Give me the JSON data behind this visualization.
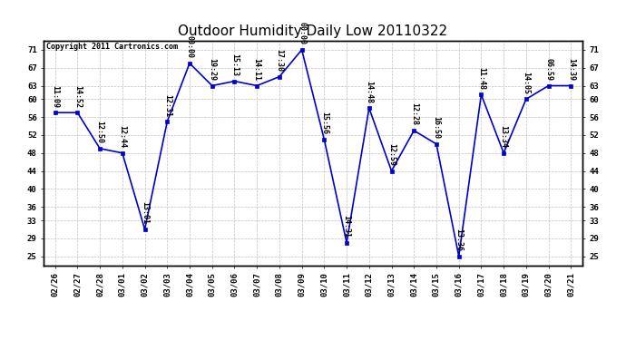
{
  "title": "Outdoor Humidity Daily Low 20110322",
  "copyright": "Copyright 2011 Cartronics.com",
  "dates": [
    "02/26",
    "02/27",
    "02/28",
    "03/01",
    "03/02",
    "03/03",
    "03/04",
    "03/05",
    "03/06",
    "03/07",
    "03/08",
    "03/09",
    "03/10",
    "03/11",
    "03/12",
    "03/13",
    "03/14",
    "03/15",
    "03/16",
    "03/17",
    "03/18",
    "03/19",
    "03/20",
    "03/21"
  ],
  "values": [
    57,
    57,
    49,
    48,
    31,
    55,
    68,
    63,
    64,
    63,
    65,
    71,
    51,
    28,
    58,
    44,
    53,
    50,
    25,
    61,
    48,
    60,
    63,
    63
  ],
  "times": [
    "11:09",
    "14:52",
    "12:50",
    "12:44",
    "13:01",
    "12:31",
    "00:00",
    "19:29",
    "15:13",
    "14:11",
    "17:30",
    "00:00",
    "15:56",
    "14:31",
    "14:48",
    "12:59",
    "12:28",
    "16:50",
    "13:36",
    "11:48",
    "13:34",
    "14:05",
    "06:59",
    "14:39"
  ],
  "line_color": "#0000cc",
  "marker_color": "#0000cc",
  "bg_color": "#ffffff",
  "grid_color": "#c0c0c0",
  "title_fontsize": 11,
  "label_fontsize": 6,
  "tick_fontsize": 6.5,
  "copyright_fontsize": 6,
  "ylim_min": 23,
  "ylim_max": 73,
  "yticks": [
    25,
    29,
    33,
    36,
    40,
    44,
    48,
    52,
    56,
    60,
    63,
    67,
    71
  ]
}
